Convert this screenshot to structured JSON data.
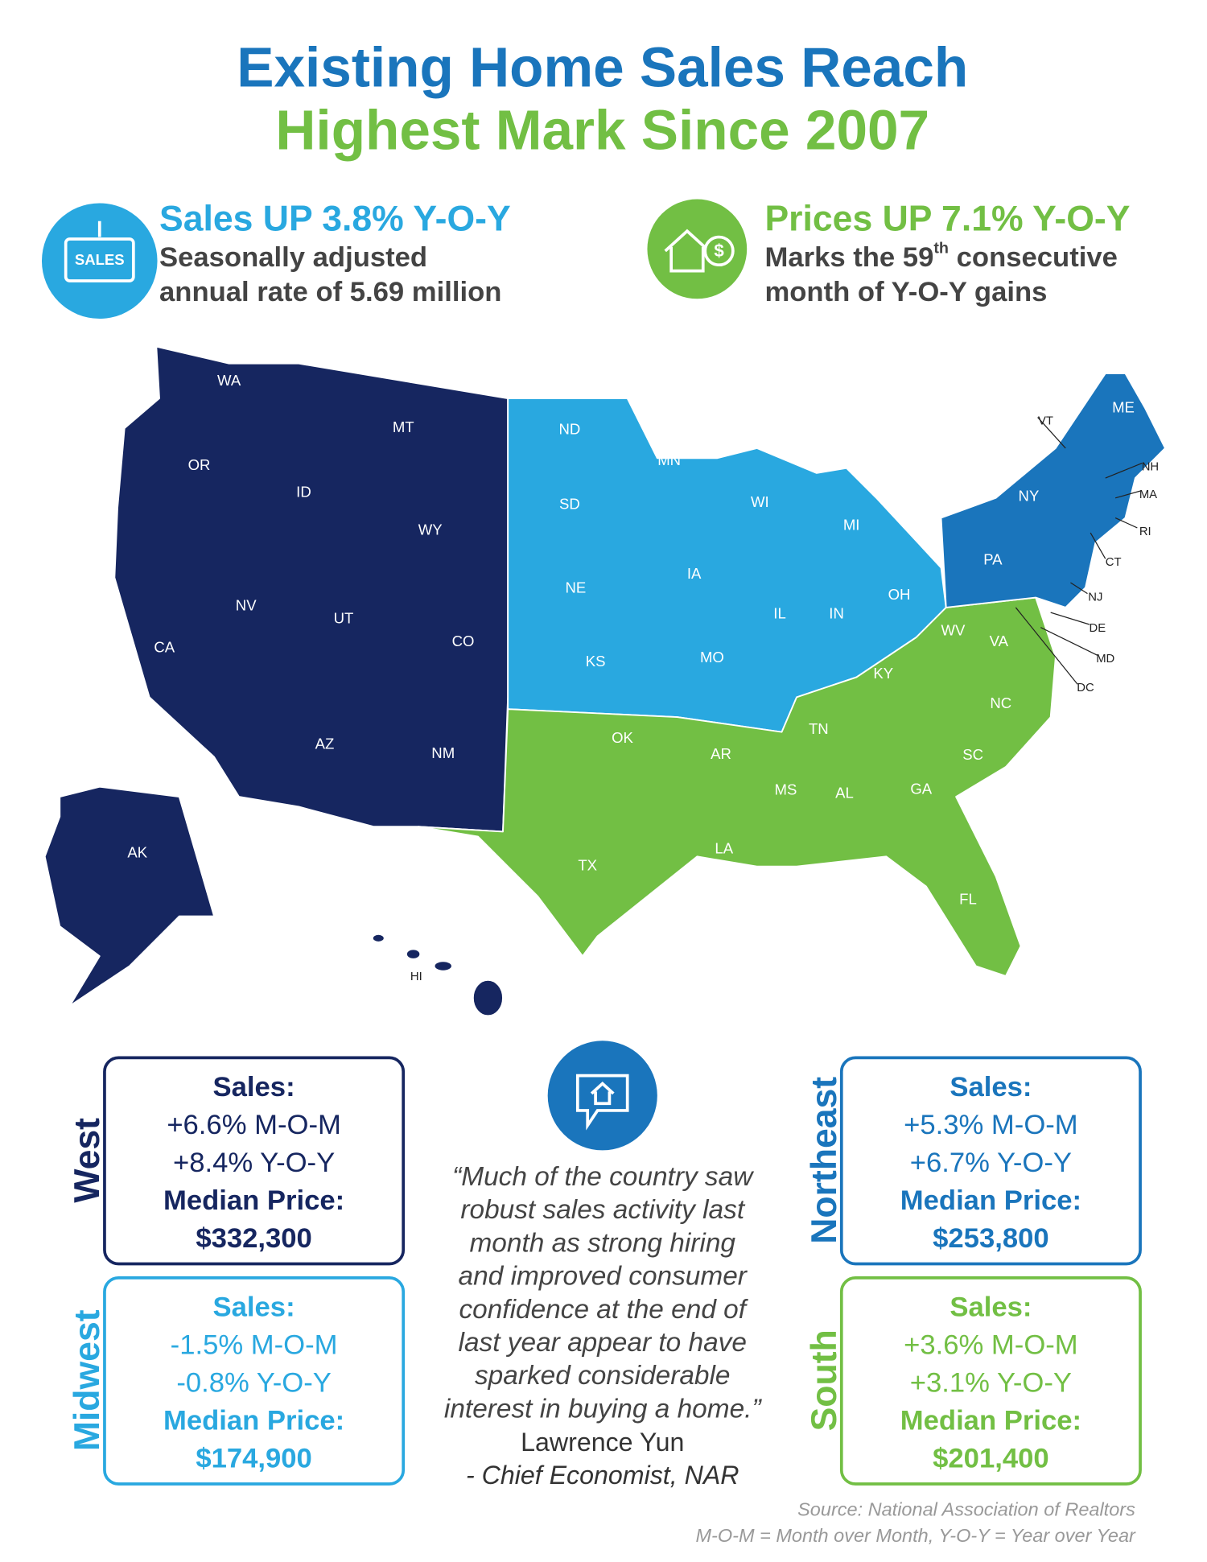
{
  "title": {
    "line1": "Existing Home Sales Reach",
    "line2": "Highest Mark Since 2007"
  },
  "highlights": [
    {
      "icon_text": "SALES",
      "heading": "Sales UP 3.8% Y-O-Y",
      "line1": "Seasonally adjusted",
      "line2": "annual rate of 5.69 million"
    },
    {
      "icon_text": "$",
      "heading": "Prices UP 7.1% Y-O-Y",
      "line1_before": "Marks the 59",
      "line1_sup": "th",
      "line1_after": " consecutive",
      "line2": "month of Y-O-Y gains"
    }
  ],
  "map": {
    "states": [
      "WA",
      "OR",
      "ID",
      "MT",
      "WY",
      "CA",
      "NV",
      "UT",
      "CO",
      "AZ",
      "NM",
      "AK",
      "HI",
      "ND",
      "SD",
      "NE",
      "KS",
      "MN",
      "IA",
      "MO",
      "WI",
      "IL",
      "IN",
      "MI",
      "OH",
      "OK",
      "TX",
      "AR",
      "LA",
      "MS",
      "AL",
      "TN",
      "KY",
      "GA",
      "FL",
      "SC",
      "NC",
      "VA",
      "WV",
      "PA",
      "NY",
      "NJ",
      "DE",
      "MD",
      "DC",
      "CT",
      "RI",
      "MA",
      "NH",
      "VT",
      "ME"
    ]
  },
  "regions": [
    {
      "name": "West",
      "lines": [
        "Sales:",
        "+6.6% M-O-M",
        "+8.4% Y-O-Y",
        "Median Price:",
        "$332,300"
      ]
    },
    {
      "name": "Midwest",
      "lines": [
        "Sales:",
        "-1.5% M-O-M",
        "-0.8% Y-O-Y",
        "Median Price:",
        "$174,900"
      ]
    },
    {
      "name": "Northeast",
      "lines": [
        "Sales:",
        "+5.3% M-O-M",
        "+6.7% Y-O-Y",
        "Median Price:",
        "$253,800"
      ]
    },
    {
      "name": "South",
      "lines": [
        "Sales:",
        "+3.6% M-O-M",
        "+3.1% Y-O-Y",
        "Median Price:",
        "$201,400"
      ]
    }
  ],
  "quote": {
    "lines": [
      "“Much of the country saw",
      "robust sales activity last",
      "month as strong hiring",
      "and improved consumer",
      "confidence at the end of",
      "last year appear to have",
      "sparked considerable",
      "interest in buying a home.”"
    ],
    "author": "Lawrence Yun",
    "role": "- Chief Economist, NAR"
  },
  "footer": {
    "source": "Source: National Association of Realtors",
    "legend": "M-O-M = Month over Month, Y-O-Y = Year over Year"
  }
}
